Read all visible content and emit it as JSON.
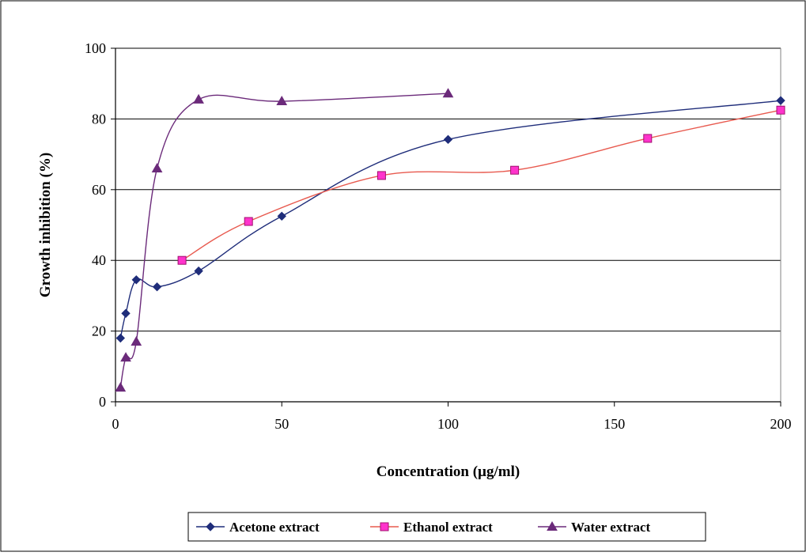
{
  "chart_data": {
    "type": "line",
    "title": "",
    "xlabel": "Concentration (µg/ml)",
    "ylabel": "Growth inhibition (%)",
    "xlim": [
      0,
      200
    ],
    "ylim": [
      0,
      100
    ],
    "x_ticks": [
      0,
      50,
      100,
      150,
      200
    ],
    "y_ticks": [
      0,
      20,
      40,
      60,
      80,
      100
    ],
    "x_tick_labels": [
      "0",
      "50",
      "100",
      "150",
      "200"
    ],
    "y_tick_labels": [
      "0",
      "20",
      "40",
      "60",
      "80",
      "100"
    ],
    "grid": "horizontal",
    "smooth": true,
    "legend_position": "bottom",
    "series": [
      {
        "name": "Acetone extract",
        "marker": "diamond",
        "color": "#1f2d7a",
        "x": [
          1.5,
          3.1,
          6.25,
          12.5,
          25,
          50,
          100,
          200
        ],
        "y": [
          18,
          25,
          34.5,
          32.5,
          37,
          52.5,
          74.2,
          85.2
        ]
      },
      {
        "name": "Ethanol extract",
        "marker": "square",
        "color": "#e85a4f",
        "marker_color": "#ff33cc",
        "x": [
          20,
          40,
          80,
          120,
          160,
          200
        ],
        "y": [
          40,
          51,
          64,
          65.5,
          74.5,
          82.5
        ]
      },
      {
        "name": "Water extract",
        "marker": "triangle",
        "color": "#6b2a7a",
        "x": [
          1.5,
          3.1,
          6.25,
          12.5,
          25,
          50,
          100
        ],
        "y": [
          4,
          12.5,
          17,
          66,
          85.5,
          85,
          87.2
        ]
      }
    ]
  }
}
